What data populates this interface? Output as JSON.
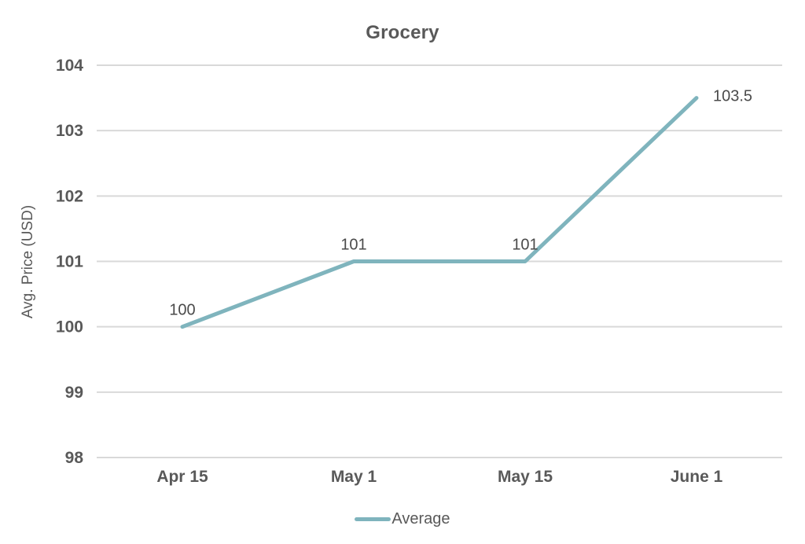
{
  "chart_data": {
    "type": "line",
    "title": "Grocery",
    "xlabel": "",
    "ylabel": "Avg. Price (USD)",
    "categories": [
      "Apr 15",
      "May 1",
      "May 15",
      "June 1"
    ],
    "series": [
      {
        "name": "Average",
        "values": [
          100,
          101,
          101,
          103.5
        ],
        "color": "#7fb4bd"
      }
    ],
    "point_labels": [
      "100",
      "101",
      "101",
      "103.5"
    ],
    "ylim": [
      98,
      104
    ],
    "y_ticks": [
      98,
      99,
      100,
      101,
      102,
      103,
      104
    ],
    "grid": "horizontal-only",
    "legend_position": "bottom-center"
  },
  "colors": {
    "line": "#7fb4bd",
    "gridline": "#d9d9d9",
    "axis_text": "#595959",
    "point_label_text": "#4a4a4a",
    "background": "#ffffff"
  }
}
